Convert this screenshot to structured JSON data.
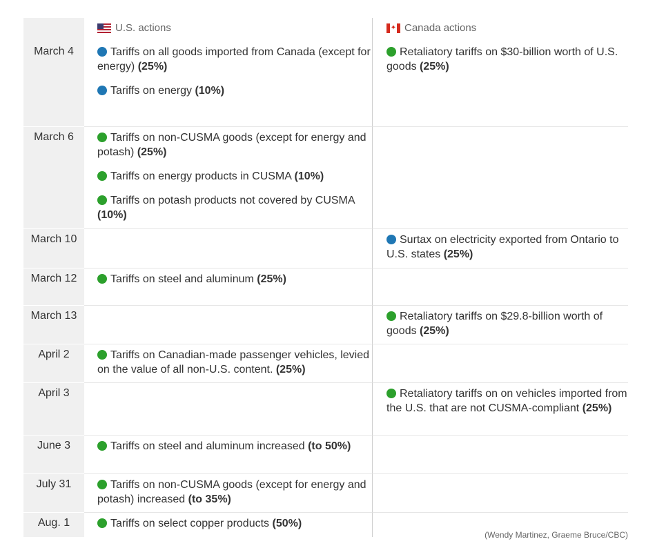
{
  "headers": {
    "us": "U.S. actions",
    "canada": "Canada actions"
  },
  "colors": {
    "blue": "#1f77b4",
    "green": "#2ca02c"
  },
  "rows": [
    {
      "date": "March 4",
      "us": [
        {
          "color": "blue",
          "text": "Tariffs on all goods imported from Canada (except for energy)",
          "amount": "(25%)"
        },
        {
          "color": "blue",
          "text": "Tariffs on energy",
          "amount": "(10%)"
        }
      ],
      "canada": [
        {
          "color": "green",
          "text": "Retaliatory tariffs on $30-billion worth of U.S. goods",
          "amount": "(25%)"
        }
      ]
    },
    {
      "date": "March 6",
      "us": [
        {
          "color": "green",
          "text": "Tariffs on non-CUSMA goods (except for energy and potash)",
          "amount": "(25%)"
        },
        {
          "color": "green",
          "text": "Tariffs on energy products in CUSMA",
          "amount": "(10%)"
        },
        {
          "color": "green",
          "text": "Tariffs on potash products not covered by CUSMA",
          "amount": "(10%)"
        }
      ],
      "canada": []
    },
    {
      "date": "March 10",
      "us": [],
      "canada": [
        {
          "color": "blue",
          "text": "Surtax on electricity exported from Ontario to U.S. states",
          "amount": "(25%)"
        }
      ]
    },
    {
      "date": "March 12",
      "us": [
        {
          "color": "green",
          "text": "Tariffs on steel and aluminum",
          "amount": "(25%)"
        }
      ],
      "canada": []
    },
    {
      "date": "March 13",
      "us": [],
      "canada": [
        {
          "color": "green",
          "text": "Retaliatory tariffs on $29.8-billion worth of goods",
          "amount": "(25%)"
        }
      ]
    },
    {
      "date": "April 2",
      "us": [
        {
          "color": "green",
          "text": "Tariffs on Canadian-made passenger vehicles, levied on the value of all non-U.S. content.",
          "amount": "(25%)"
        }
      ],
      "canada": []
    },
    {
      "date": "April 3",
      "us": [],
      "canada": [
        {
          "color": "green",
          "text": "Retaliatory tariffs on on vehicles imported from the U.S. that are not CUSMA-compliant",
          "amount": "(25%)"
        }
      ]
    },
    {
      "date": "June 3",
      "us": [
        {
          "color": "green",
          "text": "Tariffs on steel and aluminum increased",
          "amount": "(to 50%)"
        }
      ],
      "canada": []
    },
    {
      "date": "July 31",
      "us": [
        {
          "color": "green",
          "text": "Tariffs on non-CUSMA goods (except for energy and potash) increased",
          "amount": "(to 35%)"
        }
      ],
      "canada": []
    },
    {
      "date": "Aug. 1",
      "us": [
        {
          "color": "green",
          "text": "Tariffs on select copper products",
          "amount": "(50%)"
        }
      ],
      "canada": []
    }
  ],
  "credit": "(Wendy Martinez, Graeme Bruce/CBC)"
}
